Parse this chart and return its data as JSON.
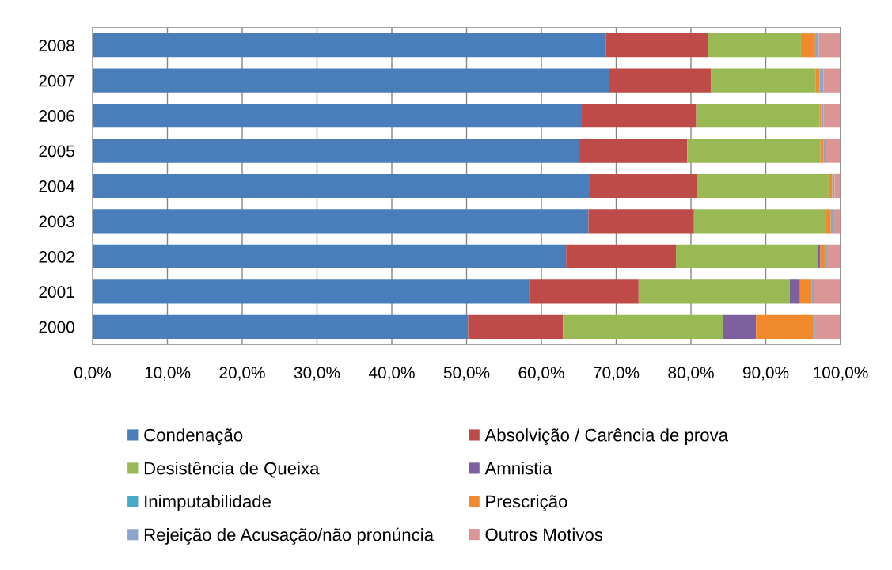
{
  "chart_data": {
    "type": "bar",
    "orientation": "horizontal",
    "stacked": true,
    "categories": [
      "2008",
      "2007",
      "2006",
      "2005",
      "2004",
      "2003",
      "2002",
      "2001",
      "2000"
    ],
    "series": [
      {
        "name": "Condenação",
        "color": "#4a7ebb",
        "values": [
          68.6,
          69.1,
          65.4,
          65.0,
          66.5,
          66.3,
          63.3,
          58.4,
          50.2
        ]
      },
      {
        "name": "Absolvição / Carência de prova",
        "color": "#be4b48",
        "values": [
          13.7,
          13.6,
          15.3,
          14.5,
          14.3,
          14.1,
          14.7,
          14.6,
          12.7
        ]
      },
      {
        "name": "Desistência de Queixa",
        "color": "#98b954",
        "values": [
          12.4,
          14.0,
          16.5,
          17.8,
          17.6,
          17.6,
          19.0,
          20.2,
          21.4
        ]
      },
      {
        "name": "Amnistia",
        "color": "#7d60a0",
        "values": [
          null,
          null,
          null,
          null,
          null,
          null,
          0.3,
          1.2,
          4.4
        ]
      },
      {
        "name": "Inimputabilidade",
        "color": "#46aac5",
        "values": [
          null,
          null,
          null,
          null,
          null,
          null,
          null,
          0.2,
          null
        ]
      },
      {
        "name": "Prescrição",
        "color": "#f08a2c",
        "values": [
          1.9,
          0.5,
          0.2,
          0.4,
          0.5,
          0.7,
          0.6,
          1.5,
          7.6
        ]
      },
      {
        "name": "Rejeição de Acusação/não pronúncia",
        "color": "#8ea5cb",
        "values": [
          0.5,
          0.5,
          0.3,
          0.3,
          0.3,
          0.3,
          0.3,
          0.3,
          0.3
        ]
      },
      {
        "name": "Outros Motivos",
        "color": "#d99694",
        "values": [
          2.9,
          2.3,
          2.3,
          2.0,
          0.8,
          1.0,
          1.8,
          3.6,
          3.4
        ]
      }
    ],
    "xlim": [
      0,
      100
    ],
    "xticks": [
      {
        "value": 0,
        "label": "0,0%"
      },
      {
        "value": 10,
        "label": "10,0%"
      },
      {
        "value": 20,
        "label": "20,0%"
      },
      {
        "value": 30,
        "label": "30,0%"
      },
      {
        "value": 40,
        "label": "40,0%"
      },
      {
        "value": 50,
        "label": "50,0%"
      },
      {
        "value": 60,
        "label": "60,0%"
      },
      {
        "value": 70,
        "label": "70,0%"
      },
      {
        "value": 80,
        "label": "80,0%"
      },
      {
        "value": 90,
        "label": "90,0%"
      },
      {
        "value": 100,
        "label": "100,0%"
      }
    ],
    "grid": "x",
    "legend": "bottom"
  }
}
